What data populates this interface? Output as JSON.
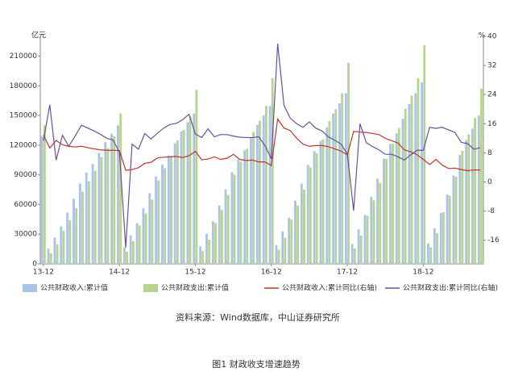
{
  "chart_data": {
    "type": "bar",
    "caption": "图1 财政收支增速趋势",
    "source": "资料来源：Wind数据库，中山证券研究所",
    "y_unit": "亿元",
    "y2_unit": "%",
    "categories": [
      "13-12",
      null,
      null,
      null,
      null,
      null,
      null,
      null,
      null,
      null,
      null,
      null,
      "14-12",
      null,
      null,
      null,
      null,
      null,
      null,
      null,
      null,
      null,
      null,
      null,
      "15-12",
      null,
      null,
      null,
      null,
      null,
      null,
      null,
      null,
      null,
      null,
      null,
      "16-12",
      null,
      null,
      null,
      null,
      null,
      null,
      null,
      null,
      null,
      null,
      null,
      "17-12",
      null,
      null,
      null,
      null,
      null,
      null,
      null,
      null,
      null,
      null,
      null,
      "18-12",
      null,
      null,
      null,
      null,
      null,
      null,
      null,
      null,
      null
    ],
    "ylim": [
      0,
      230000
    ],
    "yticks": [
      0,
      30000,
      60000,
      90000,
      120000,
      150000,
      180000,
      210000
    ],
    "y2lim": [
      -22.5,
      40
    ],
    "y2ticks": [
      -16,
      -8,
      0,
      8,
      16,
      24,
      32,
      40
    ],
    "series": [
      {
        "name": "公共财政收入:累计值",
        "color": "#a9c4e4",
        "type": "bar",
        "values": [
          129000,
          15400,
          26600,
          37800,
          51800,
          65800,
          81200,
          92400,
          100800,
          112000,
          123200,
          131600,
          140000,
          16700,
          28900,
          41100,
          56300,
          71500,
          88300,
          100500,
          109600,
          121800,
          133900,
          143100,
          152200,
          17600,
          30300,
          43100,
          59100,
          75000,
          92600,
          105300,
          114900,
          127700,
          140400,
          150000,
          159600,
          19000,
          32800,
          46600,
          63900,
          81100,
          100100,
          113900,
          124300,
          138100,
          151900,
          162200,
          172600,
          20200,
          34800,
          49500,
          67900,
          86200,
          106400,
          121000,
          132000,
          146700,
          161400,
          172400,
          183400,
          20900,
          36100,
          51300,
          70300,
          89300,
          110200,
          125400,
          136800,
          150000
        ]
      },
      {
        "name": "公共财政支出:累计值",
        "color": "#b6d48f",
        "type": "bar",
        "values": [
          140000,
          10600,
          19700,
          33400,
          44000,
          56200,
          72900,
          83500,
          94100,
          107800,
          116900,
          129000,
          151800,
          12300,
          22900,
          38700,
          51000,
          65000,
          84400,
          96700,
          109000,
          124800,
          135400,
          149400,
          175800,
          13100,
          24400,
          41300,
          54500,
          69500,
          90100,
          103300,
          116400,
          133300,
          144600,
          159600,
          187800,
          14200,
          26400,
          44700,
          58900,
          75100,
          97500,
          111700,
          125900,
          144200,
          156400,
          172600,
          203100,
          15500,
          28700,
          48600,
          64100,
          81700,
          106000,
          121500,
          137000,
          156800,
          170100,
          187800,
          220900,
          16700,
          30900,
          52400,
          69000,
          88100,
          114200,
          130900,
          147600,
          177000
        ]
      },
      {
        "name": "公共财政收入:累计同比(右轴)",
        "color": "#c0352b",
        "type": "line",
        "axis": "y2",
        "values": [
          12.9,
          9.3,
          11.4,
          10.2,
          9.8,
          9.6,
          9.8,
          9.4,
          9.1,
          8.8,
          8.7,
          8.7,
          8.6,
          3.2,
          3.4,
          3.9,
          5.1,
          5.4,
          6.6,
          6.8,
          6.9,
          7.0,
          6.7,
          7.2,
          8.4,
          6.1,
          6.3,
          6.9,
          6.2,
          6.5,
          7.6,
          6.2,
          5.9,
          6.0,
          5.5,
          5.5,
          4.5,
          17.3,
          14.8,
          14.1,
          12.0,
          10.4,
          9.8,
          10.0,
          10.0,
          9.7,
          9.1,
          8.5,
          7.4,
          13.9,
          13.7,
          13.6,
          13.3,
          13.0,
          12.0,
          11.3,
          10.7,
          8.8,
          8.3,
          7.5,
          6.2,
          4.8,
          6.2,
          4.6,
          3.7,
          3.8,
          3.4,
          3.1,
          3.3,
          3.3
        ]
      },
      {
        "name": "公共财政支出:累计同比(右轴)",
        "color": "#6a4f9e",
        "type": "line",
        "axis": "y2",
        "values": [
          11.3,
          21.2,
          6.0,
          12.8,
          9.8,
          12.6,
          15.6,
          14.8,
          14.0,
          13.1,
          12.0,
          11.5,
          8.2,
          -18.0,
          10.4,
          9.0,
          13.3,
          11.8,
          13.4,
          14.8,
          15.8,
          16.1,
          17.1,
          18.6,
          13.2,
          12.2,
          14.6,
          12.4,
          13.0,
          13.0,
          12.6,
          12.3,
          12.2,
          12.2,
          12.4,
          10.0,
          6.3,
          38.0,
          21.0,
          17.5,
          16.0,
          15.0,
          16.5,
          14.8,
          14.0,
          12.4,
          11.5,
          10.4,
          7.7,
          -7.9,
          16.0,
          10.8,
          9.7,
          8.8,
          7.6,
          7.6,
          6.9,
          6.0,
          7.4,
          8.7,
          8.7,
          15.0,
          14.7,
          15.0,
          14.3,
          13.6,
          10.9,
          10.5,
          9.0,
          9.4
        ]
      }
    ]
  }
}
